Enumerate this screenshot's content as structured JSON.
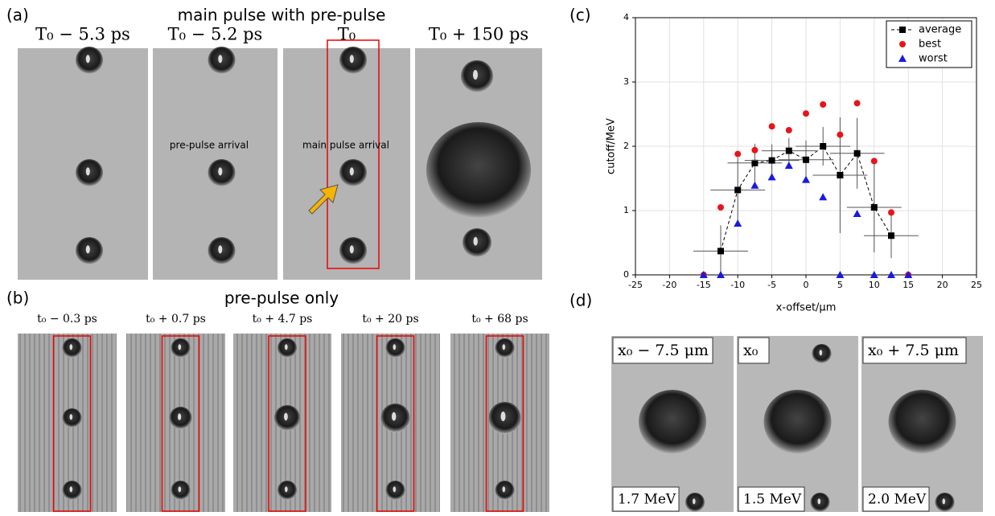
{
  "panel_a": {
    "letter": "(a)",
    "title": "main pulse with pre-pulse",
    "frames": [
      "T₀ − 5.3 ps",
      "T₀ − 5.2 ps",
      "T₀",
      "T₀ + 150 ps"
    ],
    "notes": [
      "pre-pulse arrival",
      "main pulse arrival"
    ]
  },
  "panel_b": {
    "letter": "(b)",
    "title": "pre-pulse  only",
    "frames": [
      "t₀ − 0.3 ps",
      "t₀ + 0.7 ps",
      "t₀ + 4.7 ps",
      "t₀ + 20 ps",
      "t₀ + 68 ps"
    ]
  },
  "panel_c": {
    "letter": "(c)"
  },
  "panel_d": {
    "letter": "(d)",
    "frames": [
      "x₀ − 7.5 μm",
      "x₀",
      "x₀ + 7.5 μm"
    ],
    "energies": [
      "1.7 MeV",
      "1.5 MeV",
      "2.0 MeV"
    ]
  },
  "chart_data": {
    "type": "scatter",
    "x_label": "x-offset/μm",
    "y_label": "cutoff/MeV",
    "x": [
      -15,
      -12.5,
      -10,
      -7.5,
      -5,
      -2.5,
      0,
      2.5,
      5,
      7.5,
      10,
      12.5,
      15
    ],
    "series": [
      {
        "name": "average",
        "color": "#000000",
        "marker": "square",
        "values": [
          null,
          0.37,
          1.32,
          1.74,
          1.78,
          1.93,
          1.79,
          2.0,
          1.55,
          1.89,
          1.05,
          0.61,
          null
        ],
        "y_errors": [
          null,
          0.4,
          0.5,
          0.3,
          0.25,
          0.2,
          0.3,
          0.3,
          0.9,
          0.55,
          0.7,
          0.35,
          null
        ],
        "x_errors": [
          null,
          4,
          4,
          4,
          4,
          4,
          4,
          4,
          4,
          4,
          4,
          4,
          null
        ]
      },
      {
        "name": "best",
        "color": "#e8141c",
        "marker": "circle",
        "values": [
          0,
          1.05,
          1.88,
          1.94,
          2.31,
          2.25,
          2.51,
          2.65,
          2.18,
          2.67,
          1.77,
          0.97,
          0
        ]
      },
      {
        "name": "worst",
        "color": "#1a1adc",
        "marker": "triangle",
        "values": [
          0,
          0,
          0.8,
          1.39,
          1.52,
          1.7,
          1.48,
          1.21,
          0,
          0.95,
          0,
          0,
          0
        ]
      }
    ],
    "xlim": [
      -25,
      25
    ],
    "xticks": [
      -25,
      -20,
      -15,
      -10,
      -5,
      0,
      5,
      10,
      15,
      20,
      25
    ],
    "ylim": [
      0,
      4
    ],
    "yticks": [
      0,
      1,
      2,
      3,
      4
    ],
    "grid": true,
    "legend": "upper right"
  }
}
